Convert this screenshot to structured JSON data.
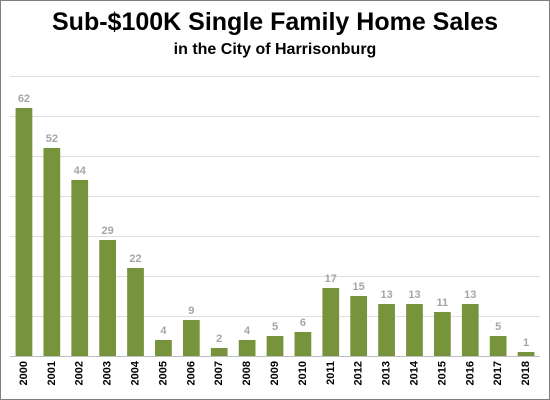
{
  "chart_data": {
    "type": "bar",
    "title": "Sub-$100K Single Family Home Sales",
    "subtitle": "in the City of Harrisonburg",
    "xlabel": "",
    "ylabel": "",
    "categories": [
      "2000",
      "2001",
      "2002",
      "2003",
      "2004",
      "2005",
      "2006",
      "2007",
      "2008",
      "2009",
      "2010",
      "2011",
      "2012",
      "2013",
      "2014",
      "2015",
      "2016",
      "2017",
      "2018"
    ],
    "values": [
      62,
      52,
      44,
      29,
      22,
      4,
      9,
      2,
      4,
      5,
      6,
      17,
      15,
      13,
      13,
      11,
      13,
      5,
      1
    ],
    "ylim": [
      0,
      70
    ],
    "grid": true,
    "legend": "none",
    "bar_color": "#77933c",
    "data_label_color": "#a6a6a6"
  }
}
